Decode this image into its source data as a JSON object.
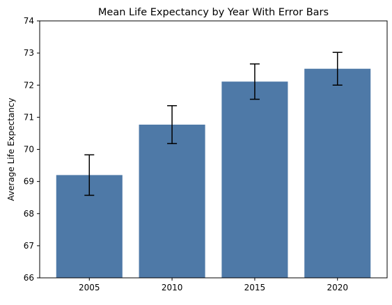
{
  "chart_data": {
    "type": "bar",
    "title": "Mean Life Expectancy by Year With Error Bars",
    "xlabel": "",
    "ylabel": "Average Life Expectancy",
    "categories": [
      "2005",
      "2010",
      "2015",
      "2020"
    ],
    "values": [
      69.2,
      70.77,
      72.11,
      72.51
    ],
    "error": [
      0.63,
      0.59,
      0.55,
      0.51
    ],
    "ylim": [
      66,
      74
    ],
    "yticks": [
      66,
      67,
      68,
      69,
      70,
      71,
      72,
      73,
      74
    ],
    "grid": false,
    "bar_color": "#4e79a7",
    "error_color": "#000000"
  }
}
